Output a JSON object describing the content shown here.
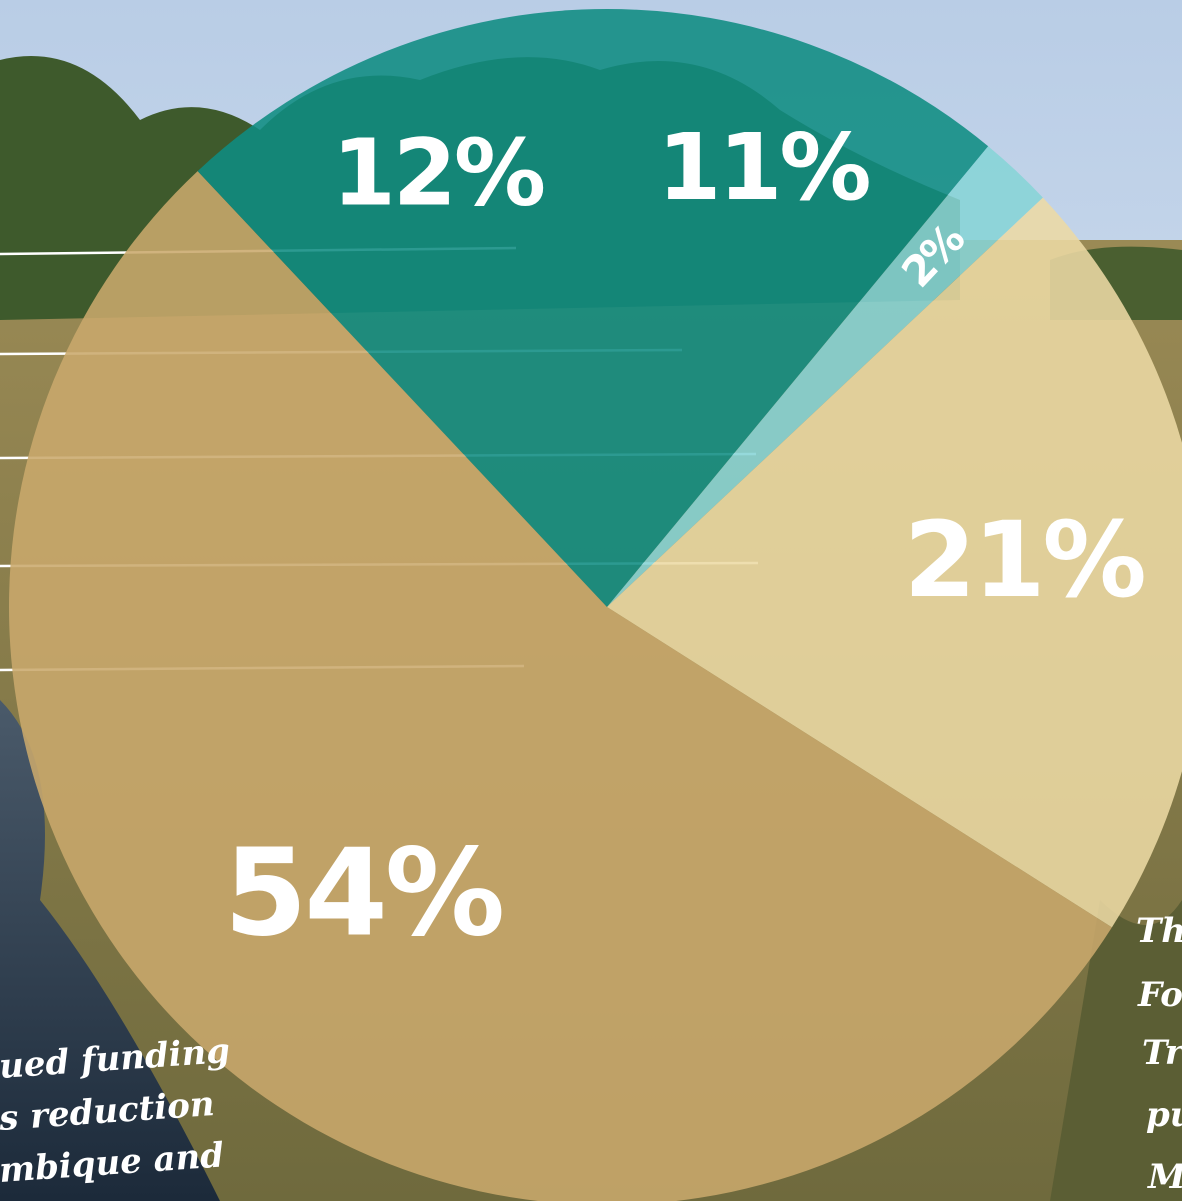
{
  "chart_data": {
    "type": "pie",
    "values": [
      11,
      2,
      21,
      54,
      12
    ],
    "value_labels": [
      "11%",
      "2%",
      "21%",
      "54%",
      "12%"
    ],
    "colors": [
      "#0f8c82",
      "#86d4d6",
      "#ecd9a4",
      "#c9a86c",
      "#0f8c82"
    ],
    "annotations": [
      "ued funding",
      "s reduction",
      "mbique and",
      "Th",
      "Fo",
      "Tr",
      "pu",
      "M"
    ]
  }
}
